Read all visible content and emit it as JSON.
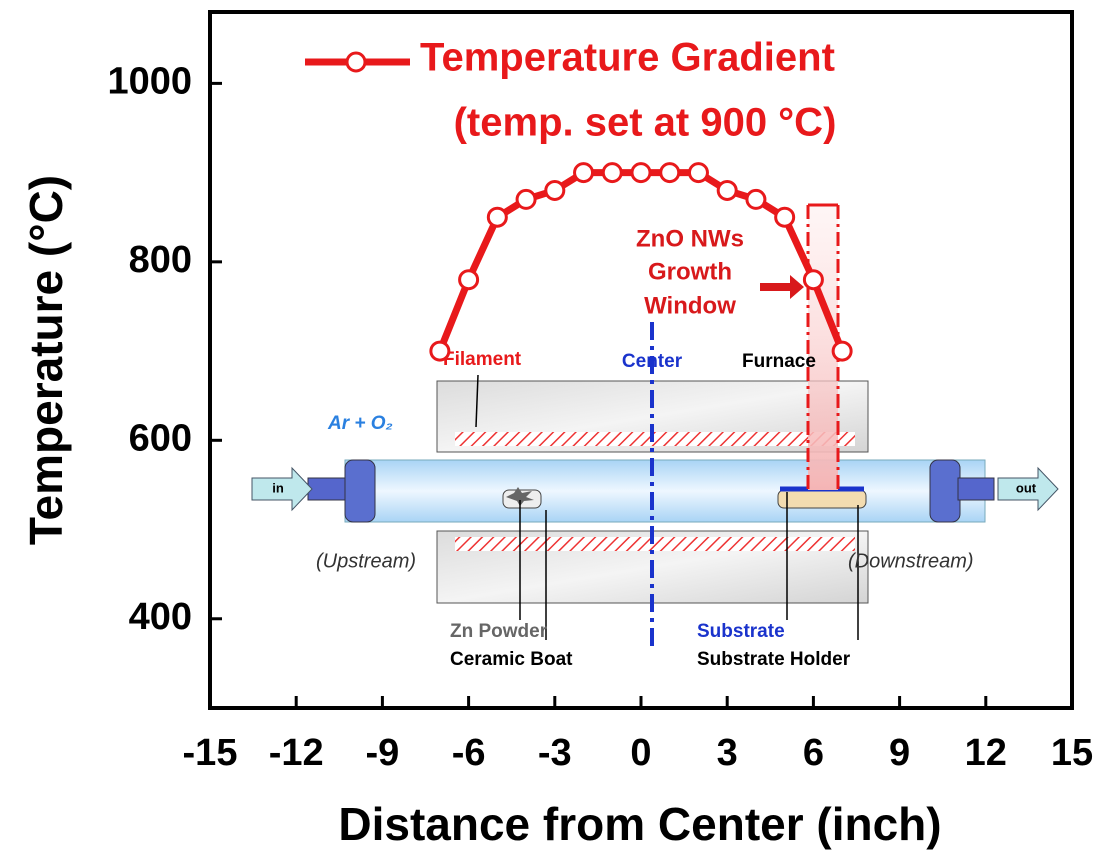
{
  "chart_data": {
    "type": "line",
    "xlabel": "Distance from Center (inch)",
    "ylabel": "Temperature (°C)",
    "x": [
      -7,
      -6,
      -5,
      -4,
      -3,
      -2,
      -1,
      0,
      1,
      2,
      3,
      4,
      5,
      6,
      7
    ],
    "series": [
      {
        "name": "Temperature Gradient",
        "color": "#e8191b",
        "values": [
          700,
          780,
          850,
          870,
          880,
          900,
          900,
          900,
          900,
          900,
          880,
          870,
          850,
          780,
          700
        ]
      }
    ],
    "xlim": [
      -15,
      15
    ],
    "ylim": [
      300,
      1080
    ],
    "xticks": [
      -15,
      -12,
      -9,
      -6,
      -3,
      0,
      3,
      6,
      9,
      12,
      15
    ],
    "yticks": [
      400,
      600,
      800,
      1000
    ],
    "legend": "top",
    "annotations": {
      "setpoint": "(temp. set at 900 °C)",
      "window": [
        "ZnO NWs",
        "Growth",
        "Window"
      ]
    }
  },
  "diagram": {
    "labels": {
      "filament": "Filament",
      "center": "Center",
      "furnace": "Furnace",
      "gas": "Ar + O₂",
      "upstream": "(Upstream)",
      "downstream": "(Downstream)",
      "zn_powder": "Zn Powder",
      "ceramic_boat": "Ceramic Boat",
      "substrate": "Substrate",
      "substrate_holder": "Substrate Holder",
      "inlet": "in",
      "outlet": "out"
    }
  }
}
